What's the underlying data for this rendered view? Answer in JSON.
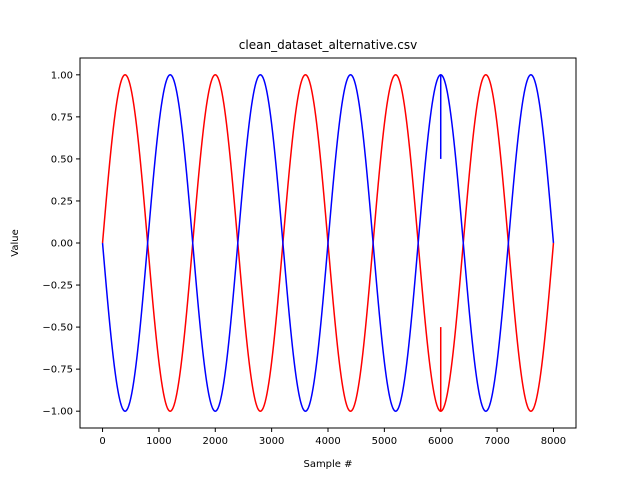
{
  "chart_data": {
    "type": "line",
    "title": "clean_dataset_alternative.csv",
    "xlabel": "Sample #",
    "ylabel": "Value",
    "xlim": [
      -400,
      8400
    ],
    "ylim": [
      -1.1,
      1.1
    ],
    "xticks": [
      0,
      1000,
      2000,
      3000,
      4000,
      5000,
      6000,
      7000,
      8000
    ],
    "yticks": [
      -1.0,
      -0.75,
      -0.5,
      -0.25,
      0.0,
      0.25,
      0.5,
      0.75,
      1.0
    ],
    "xtick_labels": [
      "0",
      "1000",
      "2000",
      "3000",
      "4000",
      "5000",
      "6000",
      "7000",
      "8000"
    ],
    "ytick_labels": [
      "−1.00",
      "−0.75",
      "−0.50",
      "−0.25",
      "0.00",
      "0.25",
      "0.50",
      "0.75",
      "1.00"
    ],
    "grid": false,
    "series": [
      {
        "color": "#ff0000",
        "function": "sin",
        "period": 1600,
        "x_range": [
          0,
          8000
        ],
        "transient": {
          "x": 6000,
          "from": -0.5,
          "to": -1.0
        }
      },
      {
        "color": "#0000ff",
        "function": "-sin",
        "period": 1600,
        "x_range": [
          0,
          8000
        ],
        "transient": {
          "x": 6000,
          "from": 0.5,
          "to": 1.0
        }
      }
    ]
  }
}
